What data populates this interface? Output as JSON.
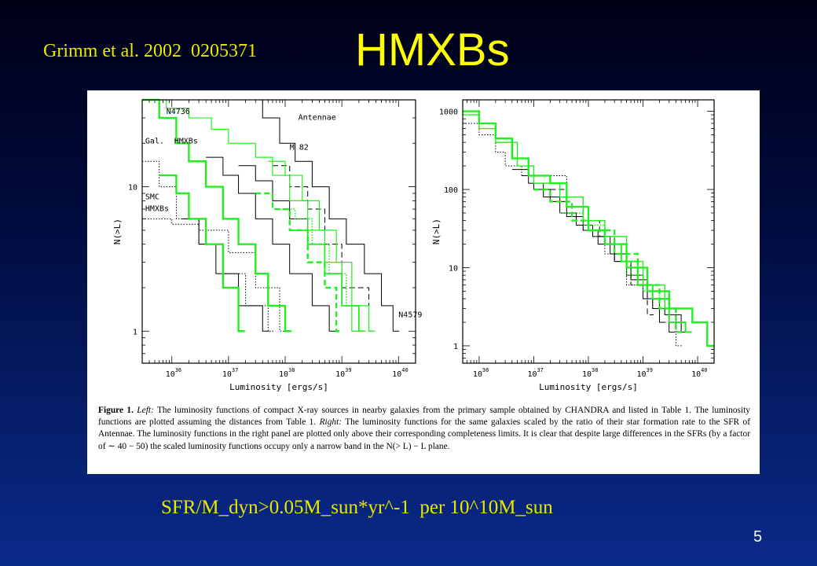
{
  "slide": {
    "reference": "Grimm et al. 2002  0205371",
    "title": "HMXBs",
    "subtitle": "SFR/M_dyn>0.05M_sun*yr^-1  per 10^10M_sun",
    "page_number": "5"
  },
  "caption": {
    "label": "Figure 1.",
    "left_word": "Left:",
    "part1": " The luminosity functions of compact X-ray sources in nearby galaxies from the primary sample obtained by CHANDRA and listed in Table 1. The luminosity functions are plotted assuming the distances from Table 1. ",
    "right_word": "Right:",
    "part2": " The luminosity functions for the same galaxies scaled by the ratio of their star formation rate to the SFR of Antennae. The luminosity functions in the right panel are plotted only above their corresponding completeness limits. It is clear that despite large differences in the SFRs (by a factor of ∼ 40 − 50) the scaled luminosity functions occupy only a narrow band in the N(> L) − L plane."
  },
  "colors": {
    "black": "#000000",
    "green": "#22ee22",
    "title_yellow": "#ffff00"
  },
  "chart_data": [
    {
      "type": "line",
      "panel": "left",
      "xlabel": "Luminosity [ergs/s]",
      "ylabel": "N(>L)",
      "xscale": "log",
      "yscale": "log",
      "xlim": [
        3e+35,
        2e+40
      ],
      "ylim": [
        0.6,
        40
      ],
      "xticks": [
        {
          "v": 1e+36,
          "base": "10",
          "exp": "36"
        },
        {
          "v": 1e+37,
          "base": "10",
          "exp": "37"
        },
        {
          "v": 1e+38,
          "base": "10",
          "exp": "38"
        },
        {
          "v": 1e+39,
          "base": "10",
          "exp": "39"
        },
        {
          "v": 1e+40,
          "base": "10",
          "exp": "40"
        }
      ],
      "yticks": [
        {
          "v": 1,
          "label": "1"
        },
        {
          "v": 10,
          "label": "10"
        }
      ],
      "annotations": [
        {
          "text": "N4736",
          "x": 8e+35,
          "y": 32
        },
        {
          "text": "Antennae",
          "x": 1.7e+38,
          "y": 29
        },
        {
          "text": "Gal.",
          "x": 3.4e+35,
          "y": 20
        },
        {
          "text": "HMXBs",
          "x": 1.1e+36,
          "y": 20
        },
        {
          "text": "M 82",
          "x": 1.2e+38,
          "y": 18
        },
        {
          "text": "SMC",
          "x": 3.4e+35,
          "y": 8.2
        },
        {
          "text": "HMXBs",
          "x": 3.4e+35,
          "y": 6.8
        },
        {
          "text": "N4579",
          "x": 1e+40,
          "y": 1.25
        }
      ],
      "series": [
        {
          "color": "black",
          "dash": "solid",
          "pts": [
            [
              2e+37,
              40
            ],
            [
              4e+37,
              30
            ],
            [
              8e+37,
              20
            ],
            [
              1.5e+38,
              15
            ],
            [
              3e+38,
              10
            ],
            [
              6e+38,
              6
            ],
            [
              1.2e+39,
              4
            ],
            [
              2.5e+39,
              2.5
            ],
            [
              5e+39,
              1.5
            ],
            [
              8e+39,
              1
            ]
          ]
        },
        {
          "color": "black",
          "dash": "solid",
          "pts": [
            [
              4e+36,
              16
            ],
            [
              8e+36,
              12
            ],
            [
              1.5e+37,
              9
            ],
            [
              3e+37,
              6
            ],
            [
              6e+37,
              4
            ],
            [
              1.2e+38,
              2.5
            ],
            [
              3e+38,
              1.5
            ],
            [
              6e+38,
              1
            ]
          ]
        },
        {
          "color": "black",
          "dash": "solid",
          "pts": [
            [
              1.5e+37,
              14
            ],
            [
              3e+37,
              11
            ],
            [
              6e+37,
              8
            ],
            [
              1.2e+38,
              6
            ],
            [
              2.5e+38,
              4
            ],
            [
              5e+38,
              2.5
            ],
            [
              1e+39,
              1.5
            ],
            [
              2e+39,
              1
            ]
          ]
        },
        {
          "color": "black",
          "dash": "dashed",
          "pts": [
            [
              6e+37,
              14
            ],
            [
              1.2e+38,
              10
            ],
            [
              2.5e+38,
              7
            ],
            [
              5e+38,
              4
            ],
            [
              1e+39,
              2
            ],
            [
              3e+39,
              1
            ]
          ]
        },
        {
          "color": "black",
          "dash": "solid",
          "pts": [
            [
              1.5e+36,
              6
            ],
            [
              3e+36,
              4
            ],
            [
              6e+36,
              2.5
            ],
            [
              1.5e+37,
              1.5
            ],
            [
              4e+37,
              1
            ]
          ]
        },
        {
          "color": "black",
          "dash": "dotted",
          "pts": [
            [
              3e+35,
              15
            ],
            [
              6e+35,
              10
            ],
            [
              1.2e+36,
              6
            ],
            [
              3e+36,
              4
            ],
            [
              8e+36,
              2.5
            ],
            [
              2e+37,
              1.5
            ],
            [
              5e+37,
              1
            ]
          ]
        },
        {
          "color": "black",
          "dash": "dotted",
          "pts": [
            [
              3e+35,
              6
            ],
            [
              1e+36,
              5.5
            ],
            [
              3e+36,
              5
            ],
            [
              1e+37,
              3.5
            ],
            [
              3e+37,
              2
            ],
            [
              8e+37,
              1
            ]
          ]
        },
        {
          "color": "green",
          "dash": "solid",
          "width": 1.2,
          "pts": [
            [
              3e+35,
              40
            ],
            [
              8e+35,
              35
            ],
            [
              2e+36,
              30
            ],
            [
              5e+36,
              25
            ],
            [
              1e+37,
              20
            ],
            [
              3e+37,
              16
            ],
            [
              6e+37,
              12
            ],
            [
              1.2e+38,
              8
            ],
            [
              2.5e+38,
              5
            ],
            [
              5e+38,
              3
            ],
            [
              1e+39,
              1.5
            ],
            [
              1.5e+39,
              1
            ]
          ]
        },
        {
          "color": "green",
          "dash": "solid",
          "width": 2.4,
          "pts": [
            [
              3e+35,
              40
            ],
            [
              6e+35,
              30
            ],
            [
              1.2e+36,
              20
            ],
            [
              2e+36,
              15
            ],
            [
              4e+36,
              10
            ],
            [
              8e+36,
              6
            ],
            [
              1.5e+37,
              4
            ],
            [
              3e+37,
              2.5
            ],
            [
              5e+37,
              1.5
            ],
            [
              1e+38,
              1
            ]
          ]
        },
        {
          "color": "green",
          "dash": "solid",
          "width": 2.4,
          "pts": [
            [
              6e+35,
              12
            ],
            [
              1.2e+36,
              9
            ],
            [
              2e+36,
              6
            ],
            [
              4e+36,
              4
            ],
            [
              8e+36,
              2
            ],
            [
              1.5e+37,
              1
            ]
          ]
        },
        {
          "color": "green",
          "dash": "solid",
          "width": 1.2,
          "pts": [
            [
              5e+37,
              15
            ],
            [
              1e+38,
              12
            ],
            [
              2e+38,
              8
            ],
            [
              4e+38,
              5
            ],
            [
              8e+38,
              3
            ],
            [
              1.5e+39,
              1.5
            ],
            [
              3e+39,
              1
            ]
          ]
        },
        {
          "color": "green",
          "dash": "dashed",
          "width": 2.4,
          "pts": [
            [
              3e+37,
              9
            ],
            [
              6e+37,
              7
            ],
            [
              1.2e+38,
              5
            ],
            [
              2.5e+38,
              3
            ],
            [
              5e+38,
              2
            ],
            [
              8e+38,
              1
            ]
          ]
        },
        {
          "color": "green",
          "dash": "dotted",
          "width": 1.6,
          "pts": [
            [
              8e+37,
              7
            ],
            [
              1.5e+38,
              6
            ],
            [
              3e+38,
              4
            ],
            [
              6e+38,
              2.5
            ],
            [
              1.2e+39,
              1.5
            ],
            [
              2e+39,
              1
            ]
          ]
        },
        {
          "color": "green",
          "dash": "solid",
          "width": 1.8,
          "pts": [
            [
              1.2e+38,
              5
            ],
            [
              2.5e+38,
              4
            ],
            [
              5e+38,
              2.5
            ],
            [
              1e+39,
              1.5
            ],
            [
              2e+39,
              1
            ]
          ]
        }
      ]
    },
    {
      "type": "line",
      "panel": "right",
      "xlabel": "Luminosity [ergs/s]",
      "ylabel": "N(>L)",
      "xscale": "log",
      "yscale": "log",
      "xlim": [
        5e+35,
        2e+40
      ],
      "ylim": [
        0.6,
        1400
      ],
      "xticks": [
        {
          "v": 1e+36,
          "base": "10",
          "exp": "36"
        },
        {
          "v": 1e+37,
          "base": "10",
          "exp": "37"
        },
        {
          "v": 1e+38,
          "base": "10",
          "exp": "38"
        },
        {
          "v": 1e+39,
          "base": "10",
          "exp": "39"
        },
        {
          "v": 1e+40,
          "base": "10",
          "exp": "40"
        }
      ],
      "yticks": [
        {
          "v": 1,
          "label": "1"
        },
        {
          "v": 10,
          "label": "10"
        },
        {
          "v": 100,
          "label": "100"
        },
        {
          "v": 1000,
          "label": "1000"
        }
      ],
      "annotations": [],
      "series": [
        {
          "color": "black",
          "dash": "dotted",
          "pts": [
            [
              5e+35,
              700
            ],
            [
              1e+36,
              500
            ],
            [
              2e+36,
              300
            ],
            [
              3e+36,
              200
            ],
            [
              6e+36,
              150
            ],
            [
              1e+37,
              150
            ],
            [
              2e+37,
              150
            ],
            [
              4e+37,
              60
            ],
            [
              8e+37,
              30
            ],
            [
              2e+38,
              15
            ],
            [
              5e+38,
              6
            ],
            [
              1.5e+39,
              3
            ],
            [
              4e+39,
              1
            ]
          ]
        },
        {
          "color": "black",
          "dash": "solid",
          "pts": [
            [
              6e+36,
              150
            ],
            [
              1e+37,
              100
            ],
            [
              2e+37,
              70
            ],
            [
              4e+37,
              45
            ],
            [
              8e+37,
              30
            ],
            [
              1.5e+38,
              20
            ],
            [
              3e+38,
              12
            ],
            [
              6e+38,
              7
            ],
            [
              1.2e+39,
              4
            ],
            [
              2.5e+39,
              2.5
            ],
            [
              5e+39,
              1.5
            ]
          ]
        },
        {
          "color": "black",
          "dash": "solid",
          "pts": [
            [
              4e+36,
              180
            ],
            [
              8e+36,
              120
            ],
            [
              1.5e+37,
              80
            ],
            [
              3e+37,
              50
            ],
            [
              6e+37,
              35
            ],
            [
              1.2e+38,
              25
            ],
            [
              2.5e+38,
              15
            ],
            [
              5e+38,
              8
            ],
            [
              1e+39,
              4
            ],
            [
              2e+39,
              2
            ]
          ]
        },
        {
          "color": "black",
          "dash": "dashed",
          "pts": [
            [
              2e+37,
              100
            ],
            [
              4e+37,
              60
            ],
            [
              8e+37,
              40
            ],
            [
              1.6e+38,
              25
            ],
            [
              3e+38,
              12
            ],
            [
              6e+38,
              6
            ],
            [
              1.2e+39,
              2.5
            ]
          ]
        },
        {
          "color": "black",
          "dash": "solid",
          "pts": [
            [
              1e+38,
              30
            ],
            [
              2e+38,
              20
            ],
            [
              4e+38,
              12
            ],
            [
              8e+38,
              6
            ],
            [
              1.5e+39,
              3
            ],
            [
              3e+39,
              1.5
            ]
          ]
        },
        {
          "color": "green",
          "dash": "solid",
          "width": 2.4,
          "pts": [
            [
              5e+35,
              1000
            ],
            [
              1e+36,
              700
            ],
            [
              2e+36,
              450
            ],
            [
              4e+36,
              250
            ],
            [
              8e+36,
              150
            ],
            [
              2e+37,
              120
            ],
            [
              4e+37,
              60
            ],
            [
              1e+38,
              30
            ],
            [
              2e+38,
              20
            ],
            [
              5e+38,
              10
            ],
            [
              1.2e+39,
              5
            ],
            [
              3e+39,
              3
            ],
            [
              8e+39,
              2
            ],
            [
              1.5e+40,
              1
            ]
          ]
        },
        {
          "color": "green",
          "dash": "solid",
          "width": 1.4,
          "pts": [
            [
              5e+35,
              900
            ],
            [
              1e+36,
              600
            ],
            [
              2e+36,
              400
            ],
            [
              5e+36,
              200
            ],
            [
              1e+37,
              120
            ],
            [
              3e+37,
              80
            ],
            [
              8e+37,
              40
            ],
            [
              2e+38,
              25
            ],
            [
              5e+38,
              12
            ],
            [
              1e+39,
              6
            ],
            [
              2.5e+39,
              3
            ]
          ]
        },
        {
          "color": "green",
          "dash": "dashed",
          "width": 2.4,
          "pts": [
            [
              1e+37,
              100
            ],
            [
              2e+37,
              70
            ],
            [
              5e+37,
              40
            ],
            [
              1e+38,
              30
            ],
            [
              3e+38,
              15
            ],
            [
              8e+38,
              6
            ],
            [
              2e+39,
              3
            ],
            [
              4e+39,
              1.5
            ]
          ]
        },
        {
          "color": "green",
          "dash": "dotted",
          "width": 1.6,
          "pts": [
            [
              3e+37,
              50
            ],
            [
              8e+37,
              35
            ],
            [
              2e+38,
              20
            ],
            [
              5e+38,
              8
            ],
            [
              1e+39,
              5
            ],
            [
              2e+39,
              3
            ]
          ]
        },
        {
          "color": "green",
          "dash": "solid",
          "width": 2.0,
          "pts": [
            [
              2e+38,
              20
            ],
            [
              4e+38,
              12
            ],
            [
              8e+38,
              6
            ],
            [
              1.5e+39,
              4
            ],
            [
              3e+39,
              2
            ],
            [
              6e+39,
              1.5
            ]
          ]
        }
      ]
    }
  ]
}
